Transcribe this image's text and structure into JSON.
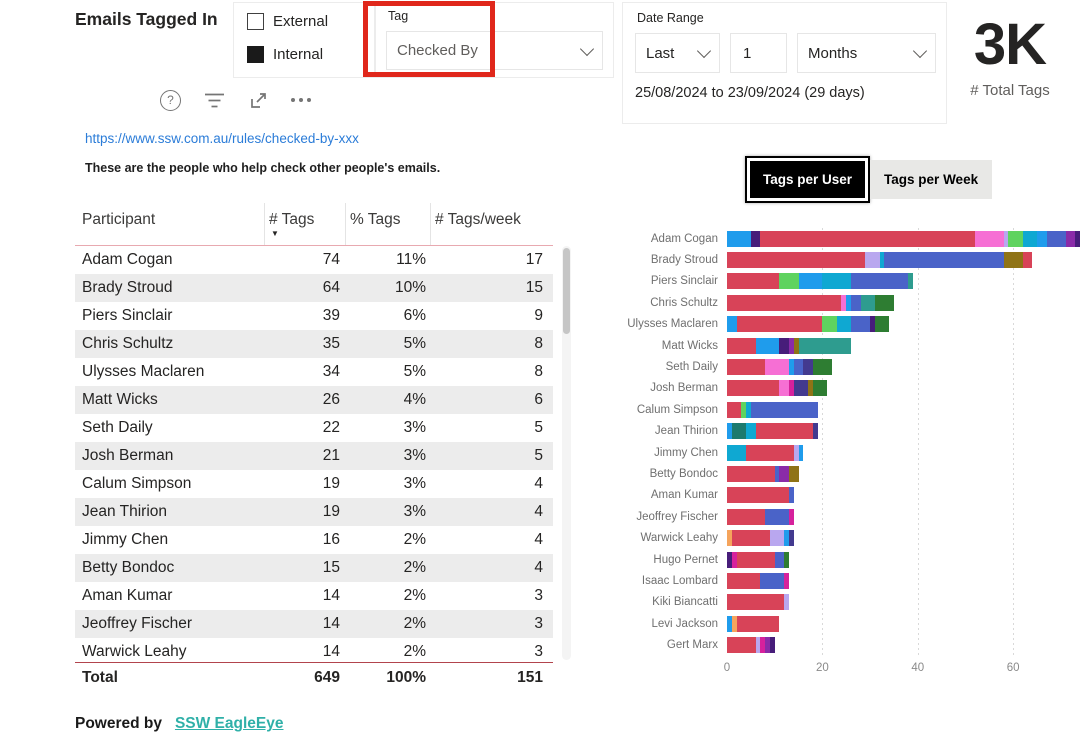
{
  "header": {
    "title": "Emails Tagged In",
    "legend": {
      "external": {
        "label": "External",
        "checked": false
      },
      "internal": {
        "label": "Internal",
        "checked": true
      }
    },
    "tag_slicer": {
      "label": "Tag",
      "value": "Checked By"
    },
    "toolbar": {
      "help_glyph": "?",
      "icons": [
        "help",
        "filter",
        "focus-mode",
        "more-options"
      ]
    },
    "date_range": {
      "label": "Date Range",
      "mode": "Last",
      "count": "1",
      "unit": "Months",
      "summary": "25/08/2024 to 23/09/2024 (29 days)"
    },
    "total_tags": {
      "value": "3K",
      "label": "# Total Tags"
    },
    "annotation_color": "#e0271b"
  },
  "content": {
    "link_text": "https://www.ssw.com.au/rules/checked-by-xxx",
    "description": "These are the people who help check other people's emails."
  },
  "table": {
    "columns": [
      "Participant",
      "# Tags",
      "% Tags",
      "# Tags/week"
    ],
    "sorted_by": "# Tags",
    "sort_direction": "desc",
    "sort_indicator": "▼",
    "rows": [
      [
        "Adam Cogan",
        "74",
        "11%",
        "17"
      ],
      [
        "Brady Stroud",
        "64",
        "10%",
        "15"
      ],
      [
        "Piers Sinclair",
        "39",
        "6%",
        "9"
      ],
      [
        "Chris Schultz",
        "35",
        "5%",
        "8"
      ],
      [
        "Ulysses Maclaren",
        "34",
        "5%",
        "8"
      ],
      [
        "Matt Wicks",
        "26",
        "4%",
        "6"
      ],
      [
        "Seth Daily",
        "22",
        "3%",
        "5"
      ],
      [
        "Josh Berman",
        "21",
        "3%",
        "5"
      ],
      [
        "Calum Simpson",
        "19",
        "3%",
        "4"
      ],
      [
        "Jean Thirion",
        "19",
        "3%",
        "4"
      ],
      [
        "Jimmy Chen",
        "16",
        "2%",
        "4"
      ],
      [
        "Betty Bondoc",
        "15",
        "2%",
        "4"
      ],
      [
        "Aman Kumar",
        "14",
        "2%",
        "3"
      ],
      [
        "Jeoffrey Fischer",
        "14",
        "2%",
        "3"
      ],
      [
        "Warwick Leahy",
        "14",
        "2%",
        "3"
      ]
    ],
    "last_row_clipped": true,
    "total_row": [
      "Total",
      "649",
      "100%",
      "151"
    ]
  },
  "chart_toggle": {
    "options": [
      "Tags per User",
      "Tags per Week"
    ],
    "selected": "Tags per User"
  },
  "chart_data": {
    "type": "bar",
    "orientation": "horizontal",
    "stacked": true,
    "title": "",
    "xlabel": "",
    "ylabel": "",
    "xlim": [
      0,
      74
    ],
    "x_ticks": [
      0,
      20,
      40,
      60
    ],
    "grid": "dotted-vertical",
    "legend_position": "none",
    "palette": {
      "red": "#d84358",
      "blue": "#1f9cec",
      "royal": "#4a63c8",
      "cyan": "#0fa8d2",
      "teal": "#2e9c8f",
      "darkteal": "#1c7a6e",
      "green": "#5fd35f",
      "darkgreen": "#2e7d32",
      "pink": "#f66fd4",
      "magenta": "#d6219c",
      "purple": "#8a2ba8",
      "indigo": "#433a8f",
      "darkpurple": "#471d7a",
      "lavender": "#b9a7ef",
      "olive": "#8f7316",
      "orange": "#f5a45c"
    },
    "bars": [
      {
        "label": "Adam Cogan",
        "total": 74,
        "segments": [
          [
            "blue",
            5
          ],
          [
            "darkpurple",
            2
          ],
          [
            "red",
            45
          ],
          [
            "pink",
            6
          ],
          [
            "lavender",
            1
          ],
          [
            "green",
            3
          ],
          [
            "cyan",
            3
          ],
          [
            "blue",
            2
          ],
          [
            "royal",
            4
          ],
          [
            "purple",
            2
          ],
          [
            "darkpurple",
            1
          ]
        ]
      },
      {
        "label": "Brady Stroud",
        "total": 64,
        "segments": [
          [
            "red",
            29
          ],
          [
            "lavender",
            3
          ],
          [
            "cyan",
            1
          ],
          [
            "royal",
            25
          ],
          [
            "olive",
            4
          ],
          [
            "red",
            2
          ]
        ]
      },
      {
        "label": "Piers Sinclair",
        "total": 39,
        "segments": [
          [
            "red",
            11
          ],
          [
            "green",
            4
          ],
          [
            "blue",
            5
          ],
          [
            "cyan",
            6
          ],
          [
            "royal",
            12
          ],
          [
            "teal",
            1
          ]
        ]
      },
      {
        "label": "Chris Schultz",
        "total": 35,
        "segments": [
          [
            "red",
            24
          ],
          [
            "pink",
            1
          ],
          [
            "blue",
            1
          ],
          [
            "royal",
            2
          ],
          [
            "teal",
            3
          ],
          [
            "darkgreen",
            4
          ]
        ]
      },
      {
        "label": "Ulysses Maclaren",
        "total": 34,
        "segments": [
          [
            "blue",
            2
          ],
          [
            "red",
            18
          ],
          [
            "green",
            3
          ],
          [
            "cyan",
            3
          ],
          [
            "royal",
            4
          ],
          [
            "darkpurple",
            1
          ],
          [
            "darkgreen",
            3
          ]
        ]
      },
      {
        "label": "Matt Wicks",
        "total": 26,
        "segments": [
          [
            "red",
            6
          ],
          [
            "blue",
            5
          ],
          [
            "darkpurple",
            2
          ],
          [
            "purple",
            1
          ],
          [
            "olive",
            1
          ],
          [
            "teal",
            11
          ]
        ]
      },
      {
        "label": "Seth Daily",
        "total": 22,
        "segments": [
          [
            "red",
            8
          ],
          [
            "pink",
            5
          ],
          [
            "blue",
            1
          ],
          [
            "royal",
            2
          ],
          [
            "indigo",
            2
          ],
          [
            "darkgreen",
            4
          ]
        ]
      },
      {
        "label": "Josh Berman",
        "total": 21,
        "segments": [
          [
            "red",
            11
          ],
          [
            "pink",
            2
          ],
          [
            "magenta",
            1
          ],
          [
            "indigo",
            3
          ],
          [
            "olive",
            1
          ],
          [
            "darkgreen",
            3
          ]
        ]
      },
      {
        "label": "Calum Simpson",
        "total": 19,
        "segments": [
          [
            "red",
            3
          ],
          [
            "green",
            1
          ],
          [
            "cyan",
            1
          ],
          [
            "royal",
            14
          ]
        ]
      },
      {
        "label": "Jean Thirion",
        "total": 19,
        "segments": [
          [
            "blue",
            1
          ],
          [
            "darkteal",
            3
          ],
          [
            "cyan",
            2
          ],
          [
            "red",
            12
          ],
          [
            "indigo",
            1
          ]
        ]
      },
      {
        "label": "Jimmy Chen",
        "total": 16,
        "segments": [
          [
            "cyan",
            4
          ],
          [
            "red",
            10
          ],
          [
            "lavender",
            1
          ],
          [
            "blue",
            1
          ]
        ]
      },
      {
        "label": "Betty Bondoc",
        "total": 15,
        "segments": [
          [
            "red",
            10
          ],
          [
            "royal",
            1
          ],
          [
            "purple",
            2
          ],
          [
            "olive",
            2
          ]
        ]
      },
      {
        "label": "Aman Kumar",
        "total": 14,
        "segments": [
          [
            "red",
            13
          ],
          [
            "royal",
            1
          ]
        ]
      },
      {
        "label": "Jeoffrey Fischer",
        "total": 14,
        "segments": [
          [
            "red",
            8
          ],
          [
            "royal",
            5
          ],
          [
            "magenta",
            1
          ]
        ]
      },
      {
        "label": "Warwick Leahy",
        "total": 14,
        "segments": [
          [
            "orange",
            1
          ],
          [
            "red",
            8
          ],
          [
            "lavender",
            3
          ],
          [
            "blue",
            1
          ],
          [
            "indigo",
            1
          ]
        ]
      },
      {
        "label": "Hugo Pernet",
        "total": 13,
        "segments": [
          [
            "darkpurple",
            1
          ],
          [
            "magenta",
            1
          ],
          [
            "red",
            8
          ],
          [
            "royal",
            2
          ],
          [
            "darkgreen",
            1
          ]
        ]
      },
      {
        "label": "Isaac Lombard",
        "total": 13,
        "segments": [
          [
            "red",
            7
          ],
          [
            "royal",
            5
          ],
          [
            "magenta",
            1
          ]
        ]
      },
      {
        "label": "Kiki Biancatti",
        "total": 13,
        "segments": [
          [
            "red",
            12
          ],
          [
            "lavender",
            1
          ]
        ]
      },
      {
        "label": "Levi Jackson",
        "total": 11,
        "segments": [
          [
            "blue",
            1
          ],
          [
            "orange",
            1
          ],
          [
            "red",
            9
          ]
        ]
      },
      {
        "label": "Gert Marx",
        "total": 10,
        "segments": [
          [
            "red",
            6
          ],
          [
            "lavender",
            1
          ],
          [
            "magenta",
            1
          ],
          [
            "purple",
            1
          ],
          [
            "darkpurple",
            1
          ]
        ]
      }
    ]
  },
  "footer": {
    "prefix": "Powered by",
    "link_text": "SSW EagleEye",
    "link_color": "#2fb0a8"
  }
}
